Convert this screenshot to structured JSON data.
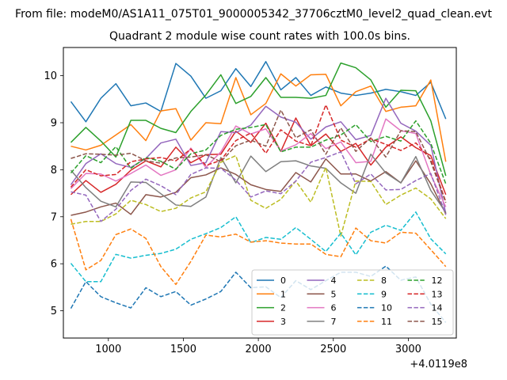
{
  "figure": {
    "suptitle": "From file: modeM0/AS1A11_075T01_9000005342_37706cztM0_level2_quad_clean.evt"
  },
  "chart_data": {
    "type": "line",
    "title": "Quadrant 2 module wise count rates with 100.0s bins.",
    "xlabel": "",
    "ylabel": "",
    "x_offset_label": "+4.0119e8",
    "xlim": [
      700,
      3320
    ],
    "ylim": [
      4.42,
      10.6
    ],
    "xticks": [
      1000,
      1500,
      2000,
      2500,
      3000
    ],
    "yticks": [
      5,
      6,
      7,
      8,
      9,
      10
    ],
    "x": [
      750,
      850,
      950,
      1050,
      1150,
      1250,
      1350,
      1450,
      1550,
      1650,
      1750,
      1850,
      1950,
      2050,
      2150,
      2250,
      2350,
      2450,
      2550,
      2650,
      2750,
      2850,
      2950,
      3050,
      3150,
      3250
    ],
    "legend": {
      "location": "lower right",
      "columns": 4
    },
    "series": [
      {
        "name": "0",
        "color": "#1f77b4",
        "style": "solid",
        "values": [
          9.45,
          9.02,
          9.52,
          9.83,
          9.36,
          9.42,
          9.24,
          10.26,
          9.99,
          9.52,
          9.68,
          10.15,
          9.77,
          10.3,
          9.7,
          9.96,
          9.58,
          9.76,
          9.63,
          9.58,
          9.63,
          9.71,
          9.66,
          9.58,
          9.86,
          9.08
        ]
      },
      {
        "name": "1",
        "color": "#ff7f0e",
        "style": "solid",
        "values": [
          8.5,
          8.42,
          8.52,
          8.74,
          8.96,
          8.62,
          9.25,
          9.3,
          8.63,
          9.0,
          8.98,
          9.96,
          9.17,
          9.41,
          10.04,
          9.78,
          10.02,
          10.03,
          9.36,
          9.66,
          9.78,
          9.24,
          9.33,
          9.36,
          9.91,
          8.17
        ]
      },
      {
        "name": "2",
        "color": "#2ca02c",
        "style": "solid",
        "values": [
          8.58,
          8.9,
          8.61,
          8.27,
          9.05,
          9.05,
          8.88,
          8.79,
          9.24,
          9.59,
          10.02,
          9.41,
          9.56,
          9.96,
          9.54,
          9.54,
          9.52,
          9.58,
          10.27,
          10.17,
          9.91,
          9.33,
          9.69,
          9.68,
          9.04,
          7.87
        ]
      },
      {
        "name": "3",
        "color": "#d62728",
        "style": "solid",
        "values": [
          7.47,
          7.77,
          7.52,
          7.69,
          7.99,
          8.19,
          8.06,
          8.48,
          8.15,
          8.32,
          8.33,
          8.82,
          8.58,
          8.99,
          8.39,
          9.1,
          8.51,
          8.76,
          8.39,
          8.56,
          8.1,
          8.48,
          8.7,
          8.47,
          8.3,
          7.47
        ]
      },
      {
        "name": "4",
        "color": "#9467bd",
        "style": "solid",
        "values": [
          7.68,
          8.13,
          8.34,
          8.13,
          8.05,
          8.24,
          8.57,
          8.65,
          8.09,
          8.15,
          8.81,
          8.79,
          8.95,
          9.35,
          9.12,
          9.01,
          8.65,
          8.91,
          9.02,
          8.64,
          8.73,
          9.52,
          8.99,
          8.82,
          8.52,
          7.07
        ]
      },
      {
        "name": "5",
        "color": "#8c564b",
        "style": "solid",
        "values": [
          7.03,
          7.1,
          7.21,
          7.29,
          7.05,
          7.47,
          7.42,
          7.52,
          7.83,
          7.89,
          8.04,
          7.9,
          7.68,
          7.58,
          7.54,
          7.94,
          7.74,
          8.23,
          7.91,
          7.91,
          7.76,
          7.96,
          7.72,
          8.19,
          7.7,
          7.06
        ]
      },
      {
        "name": "6",
        "color": "#e377c2",
        "style": "solid",
        "values": [
          7.6,
          7.92,
          7.91,
          7.76,
          7.92,
          8.1,
          7.88,
          8.0,
          8.46,
          8.05,
          8.38,
          8.93,
          8.76,
          8.87,
          8.4,
          8.53,
          8.77,
          8.45,
          8.59,
          8.15,
          8.18,
          9.08,
          8.83,
          8.77,
          7.89,
          7.21
        ]
      },
      {
        "name": "7",
        "color": "#7f7f7f",
        "style": "solid",
        "values": [
          7.99,
          7.62,
          7.33,
          7.21,
          7.74,
          7.73,
          7.49,
          7.25,
          7.22,
          7.42,
          8.26,
          7.72,
          8.29,
          7.96,
          8.17,
          8.19,
          8.08,
          8.03,
          7.72,
          7.5,
          8.33,
          7.93,
          7.72,
          8.28,
          7.56,
          7.09
        ]
      },
      {
        "name": "8",
        "color": "#bcbd22",
        "style": "dashed",
        "values": [
          6.84,
          6.9,
          6.9,
          7.06,
          7.35,
          7.26,
          7.11,
          7.18,
          7.4,
          7.53,
          8.16,
          8.3,
          7.35,
          7.18,
          7.37,
          7.76,
          7.31,
          8.05,
          6.59,
          7.76,
          7.75,
          7.26,
          7.46,
          7.61,
          7.38,
          6.96
        ]
      },
      {
        "name": "9",
        "color": "#17becf",
        "style": "dashed",
        "values": [
          6.01,
          5.62,
          5.62,
          6.2,
          6.12,
          6.18,
          6.22,
          6.31,
          6.52,
          6.64,
          6.77,
          7.0,
          6.45,
          6.56,
          6.52,
          6.77,
          6.52,
          6.26,
          6.65,
          6.19,
          6.67,
          6.82,
          6.71,
          7.1,
          6.53,
          6.21
        ]
      },
      {
        "name": "10",
        "color": "#1f77b4",
        "style": "dashed",
        "values": [
          5.05,
          5.62,
          5.3,
          5.17,
          5.06,
          5.49,
          5.3,
          5.41,
          5.12,
          5.25,
          5.41,
          5.82,
          5.49,
          5.51,
          5.28,
          5.64,
          5.45,
          5.64,
          5.82,
          5.82,
          5.73,
          5.95,
          5.65,
          5.72,
          5.14,
          4.75
        ]
      },
      {
        "name": "11",
        "color": "#ff7f0e",
        "style": "dashed",
        "values": [
          6.95,
          5.87,
          6.07,
          6.62,
          6.74,
          6.54,
          5.94,
          5.56,
          6.05,
          6.61,
          6.57,
          6.63,
          6.46,
          6.49,
          6.44,
          6.42,
          6.42,
          6.2,
          6.15,
          6.76,
          6.49,
          6.44,
          6.67,
          6.65,
          6.3,
          5.94
        ]
      },
      {
        "name": "12",
        "color": "#2ca02c",
        "style": "dashed",
        "values": [
          7.93,
          8.3,
          8.15,
          8.49,
          8.03,
          8.26,
          8.18,
          8.01,
          8.34,
          8.42,
          8.73,
          8.86,
          8.9,
          8.96,
          8.38,
          8.48,
          8.48,
          8.63,
          8.74,
          8.96,
          8.6,
          8.71,
          8.61,
          9.04,
          8.56,
          7.7
        ]
      },
      {
        "name": "13",
        "color": "#d62728",
        "style": "dashed",
        "values": [
          7.63,
          8.0,
          7.87,
          7.9,
          8.17,
          8.23,
          8.26,
          8.19,
          8.44,
          8.09,
          8.2,
          8.62,
          8.78,
          8.35,
          8.85,
          8.61,
          8.51,
          9.38,
          8.63,
          8.48,
          8.66,
          8.54,
          8.41,
          8.57,
          8.22,
          7.32
        ]
      },
      {
        "name": "14",
        "color": "#9467bd",
        "style": "dashed",
        "values": [
          7.53,
          7.46,
          6.9,
          7.16,
          7.56,
          7.8,
          7.66,
          7.47,
          7.9,
          8.04,
          8.03,
          7.78,
          7.42,
          7.55,
          7.49,
          7.76,
          8.16,
          8.26,
          8.38,
          7.7,
          7.91,
          7.57,
          7.58,
          7.77,
          7.92,
          7.04
        ]
      },
      {
        "name": "15",
        "color": "#8c564b",
        "style": "dashed",
        "values": [
          8.24,
          8.34,
          8.33,
          8.31,
          8.35,
          8.19,
          8.14,
          8.25,
          8.27,
          8.32,
          8.17,
          8.51,
          8.63,
          8.5,
          9.27,
          8.68,
          8.85,
          8.33,
          8.89,
          8.39,
          8.68,
          8.27,
          8.83,
          8.81,
          8.17,
          7.3
        ]
      }
    ]
  }
}
